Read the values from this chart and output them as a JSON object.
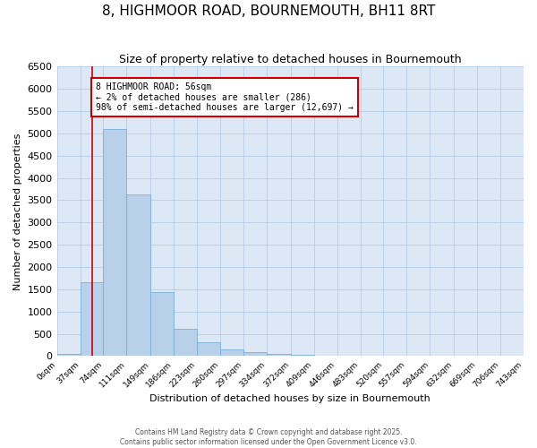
{
  "title": "8, HIGHMOOR ROAD, BOURNEMOUTH, BH11 8RT",
  "subtitle": "Size of property relative to detached houses in Bournemouth",
  "xlabel": "Distribution of detached houses by size in Bournemouth",
  "ylabel": "Number of detached properties",
  "bin_edges": [
    0,
    37,
    74,
    111,
    149,
    186,
    223,
    260,
    297,
    334,
    372,
    409,
    446,
    483,
    520,
    557,
    594,
    632,
    669,
    706,
    743
  ],
  "bar_heights": [
    50,
    1650,
    5100,
    3620,
    1430,
    620,
    320,
    155,
    100,
    50,
    30,
    10,
    5,
    0,
    0,
    0,
    0,
    0,
    0,
    0
  ],
  "bar_color": "#b8d0ea",
  "bar_edge_color": "#7aafd4",
  "property_size": 56,
  "red_line_x": 56,
  "annotation_title": "8 HIGHMOOR ROAD: 56sqm",
  "annotation_line1": "← 2% of detached houses are smaller (286)",
  "annotation_line2": "98% of semi-detached houses are larger (12,697) →",
  "annotation_box_color": "#ffffff",
  "annotation_box_edge_color": "#cc0000",
  "red_line_color": "#cc0000",
  "ylim": [
    0,
    6500
  ],
  "ytick_interval": 500,
  "background_color": "#ffffff",
  "plot_bg_color": "#dce8f5",
  "grid_color": "#b0c8e0",
  "footer_line1": "Contains HM Land Registry data © Crown copyright and database right 2025.",
  "footer_line2": "Contains public sector information licensed under the Open Government Licence v3.0."
}
